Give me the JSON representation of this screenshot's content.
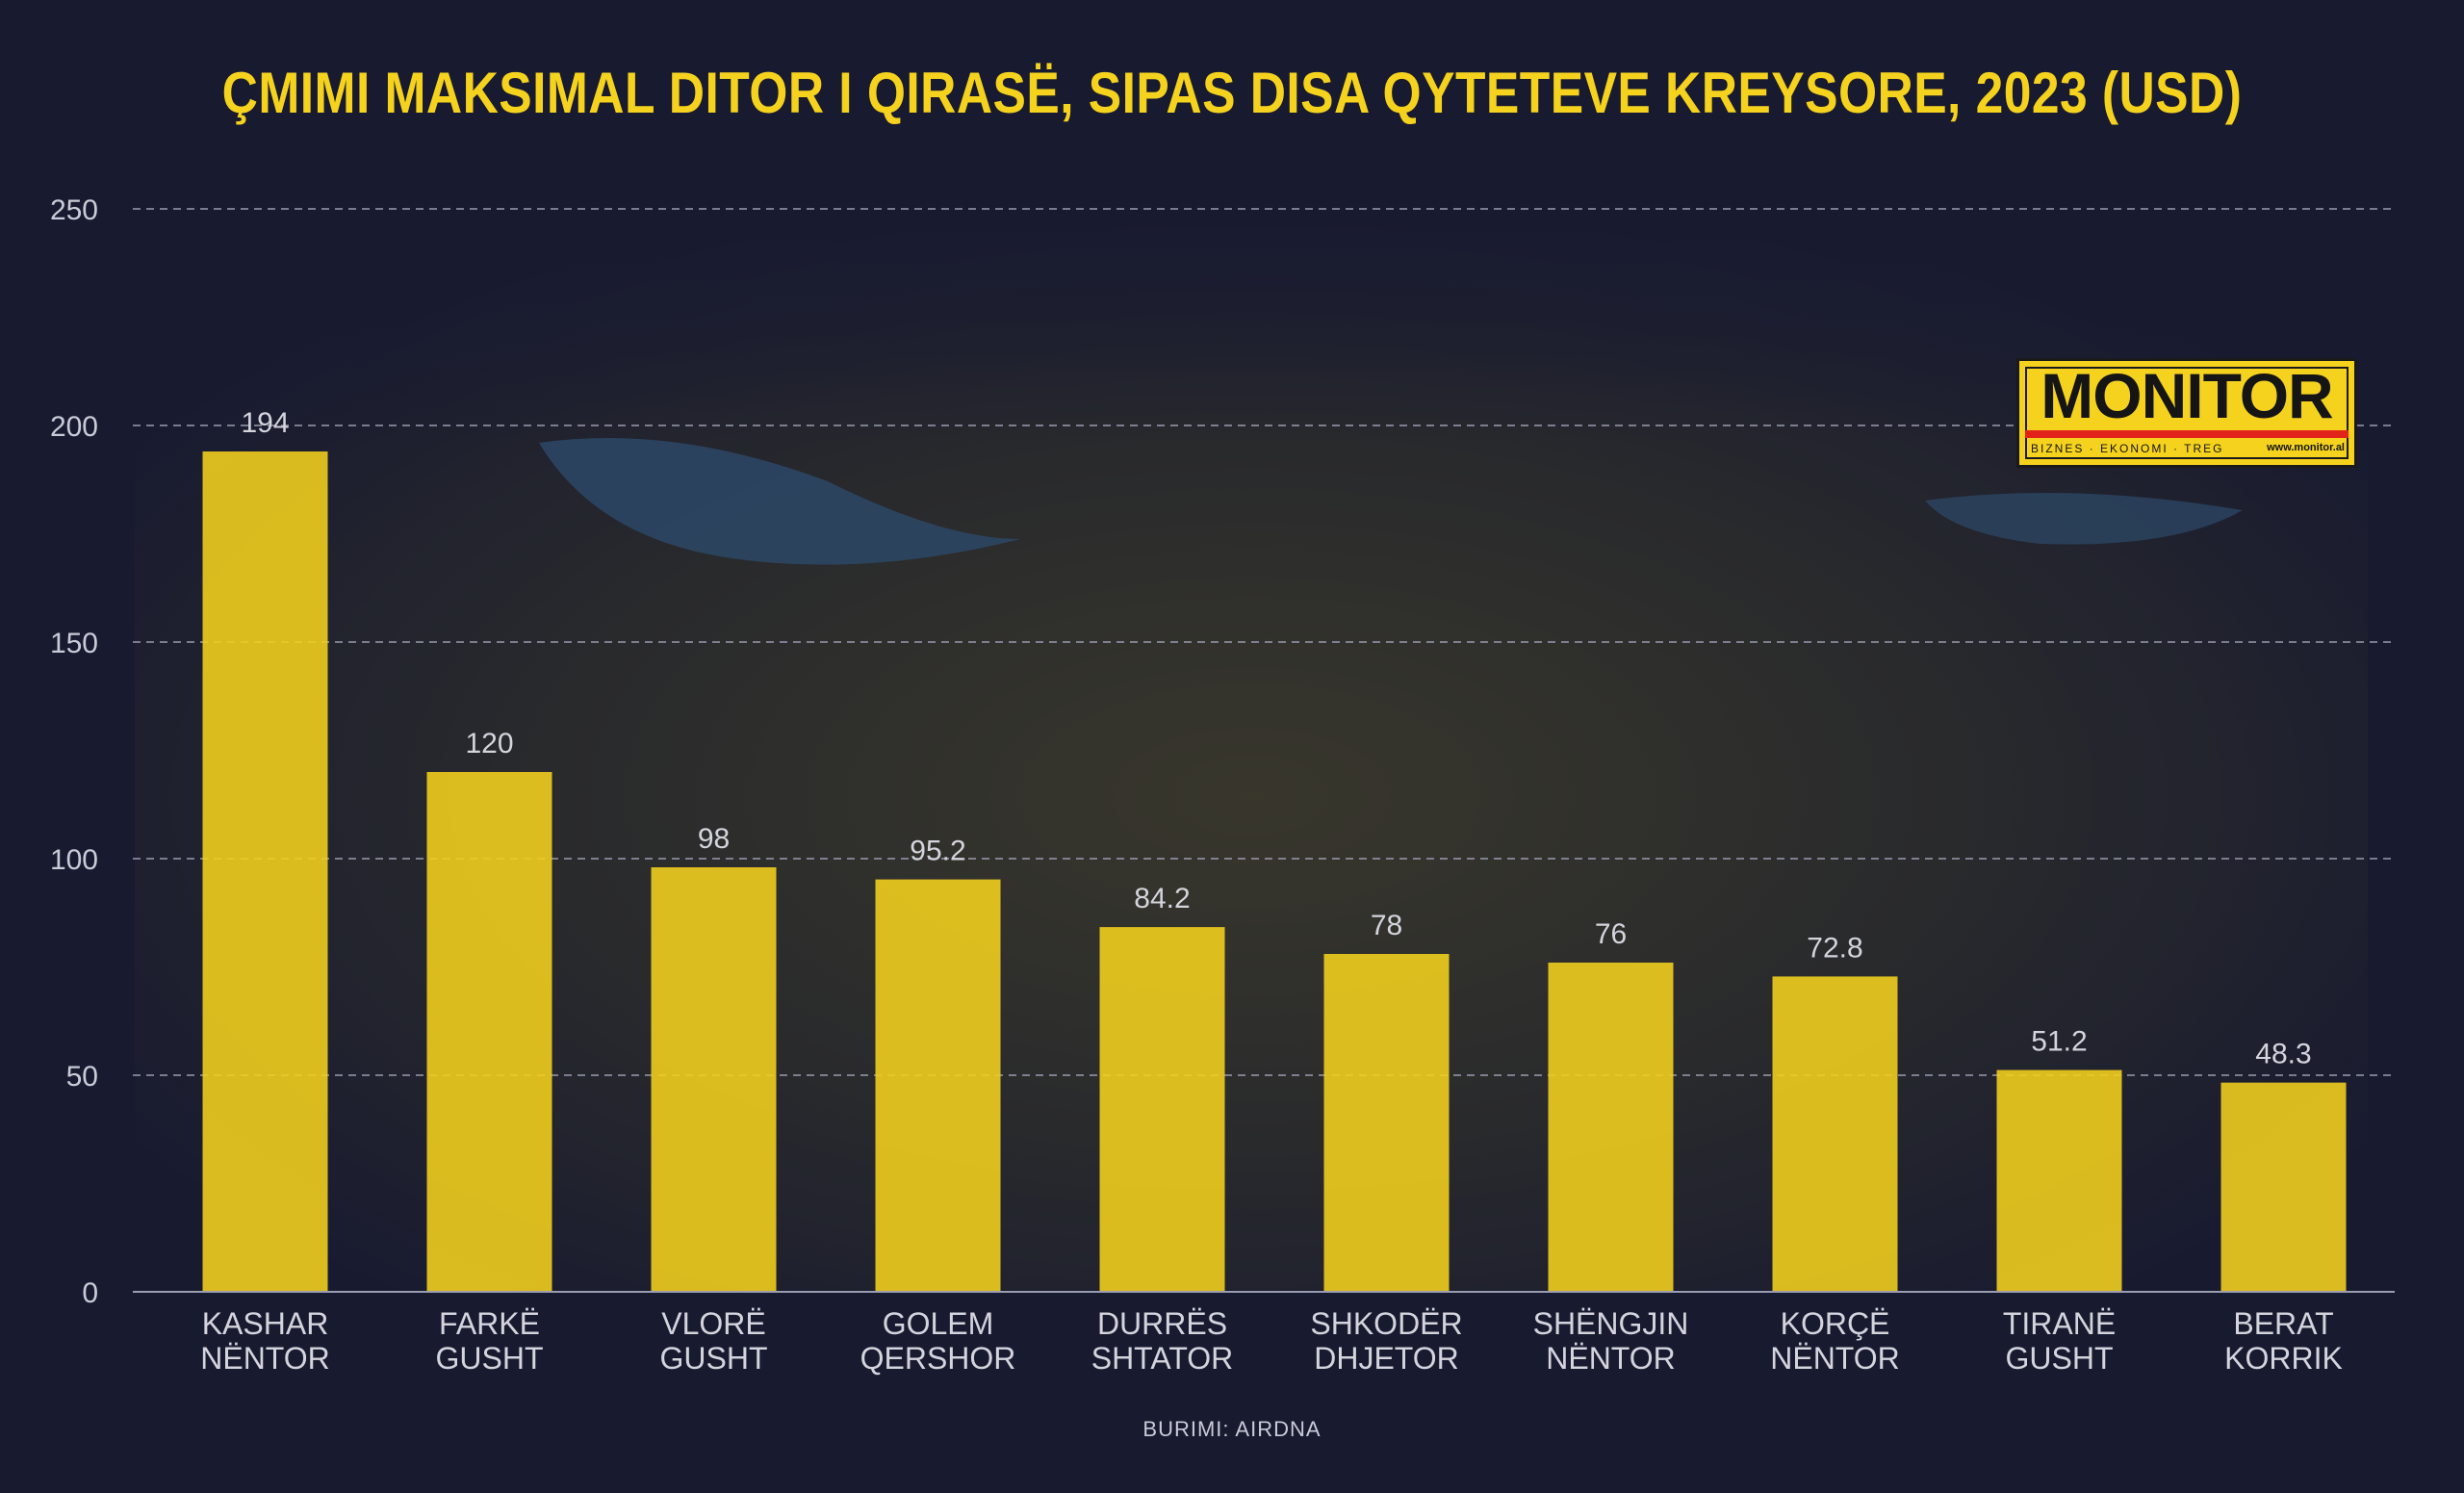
{
  "title": "ÇMIMI MAKSIMAL DITOR I QIRASË, SIPAS DISA QYTETEVE KREYSORE, 2023 (USD)",
  "source": "BURIMI: AIRDNA",
  "logo": {
    "name": "MONITOR",
    "tagline": "BIZNES · EKONOMI · TREG",
    "url": "www.monitor.al"
  },
  "colors": {
    "background": "#181a30",
    "bar": "#f5d21e",
    "title": "#f5d21e",
    "text": "#d3d4dc",
    "grid": "#9a9cb0"
  },
  "chart_data": {
    "type": "bar",
    "categories": [
      [
        "KASHAR",
        "NËNTOR"
      ],
      [
        "FARKË",
        "GUSHT"
      ],
      [
        "VLORË",
        "GUSHT"
      ],
      [
        "GOLEM",
        "QERSHOR"
      ],
      [
        "DURRËS",
        "SHTATOR"
      ],
      [
        "SHKODËR",
        "DHJETOR"
      ],
      [
        "SHËNGJIN",
        "NËNTOR"
      ],
      [
        "KORÇË",
        "NËNTOR"
      ],
      [
        "TIRANË",
        "GUSHT"
      ],
      [
        "BERAT",
        "KORRIK"
      ]
    ],
    "values": [
      194,
      120,
      98,
      95.2,
      84.2,
      78,
      76,
      72.8,
      51.2,
      48.3
    ],
    "value_labels": [
      "194",
      "120",
      "98",
      "95.2",
      "84.2",
      "78",
      "76",
      "72.8",
      "51.2",
      "48.3"
    ],
    "yticks": [
      0,
      50,
      100,
      150,
      200,
      250
    ],
    "ylim": [
      0,
      250
    ],
    "grid": true,
    "legend": "none"
  }
}
